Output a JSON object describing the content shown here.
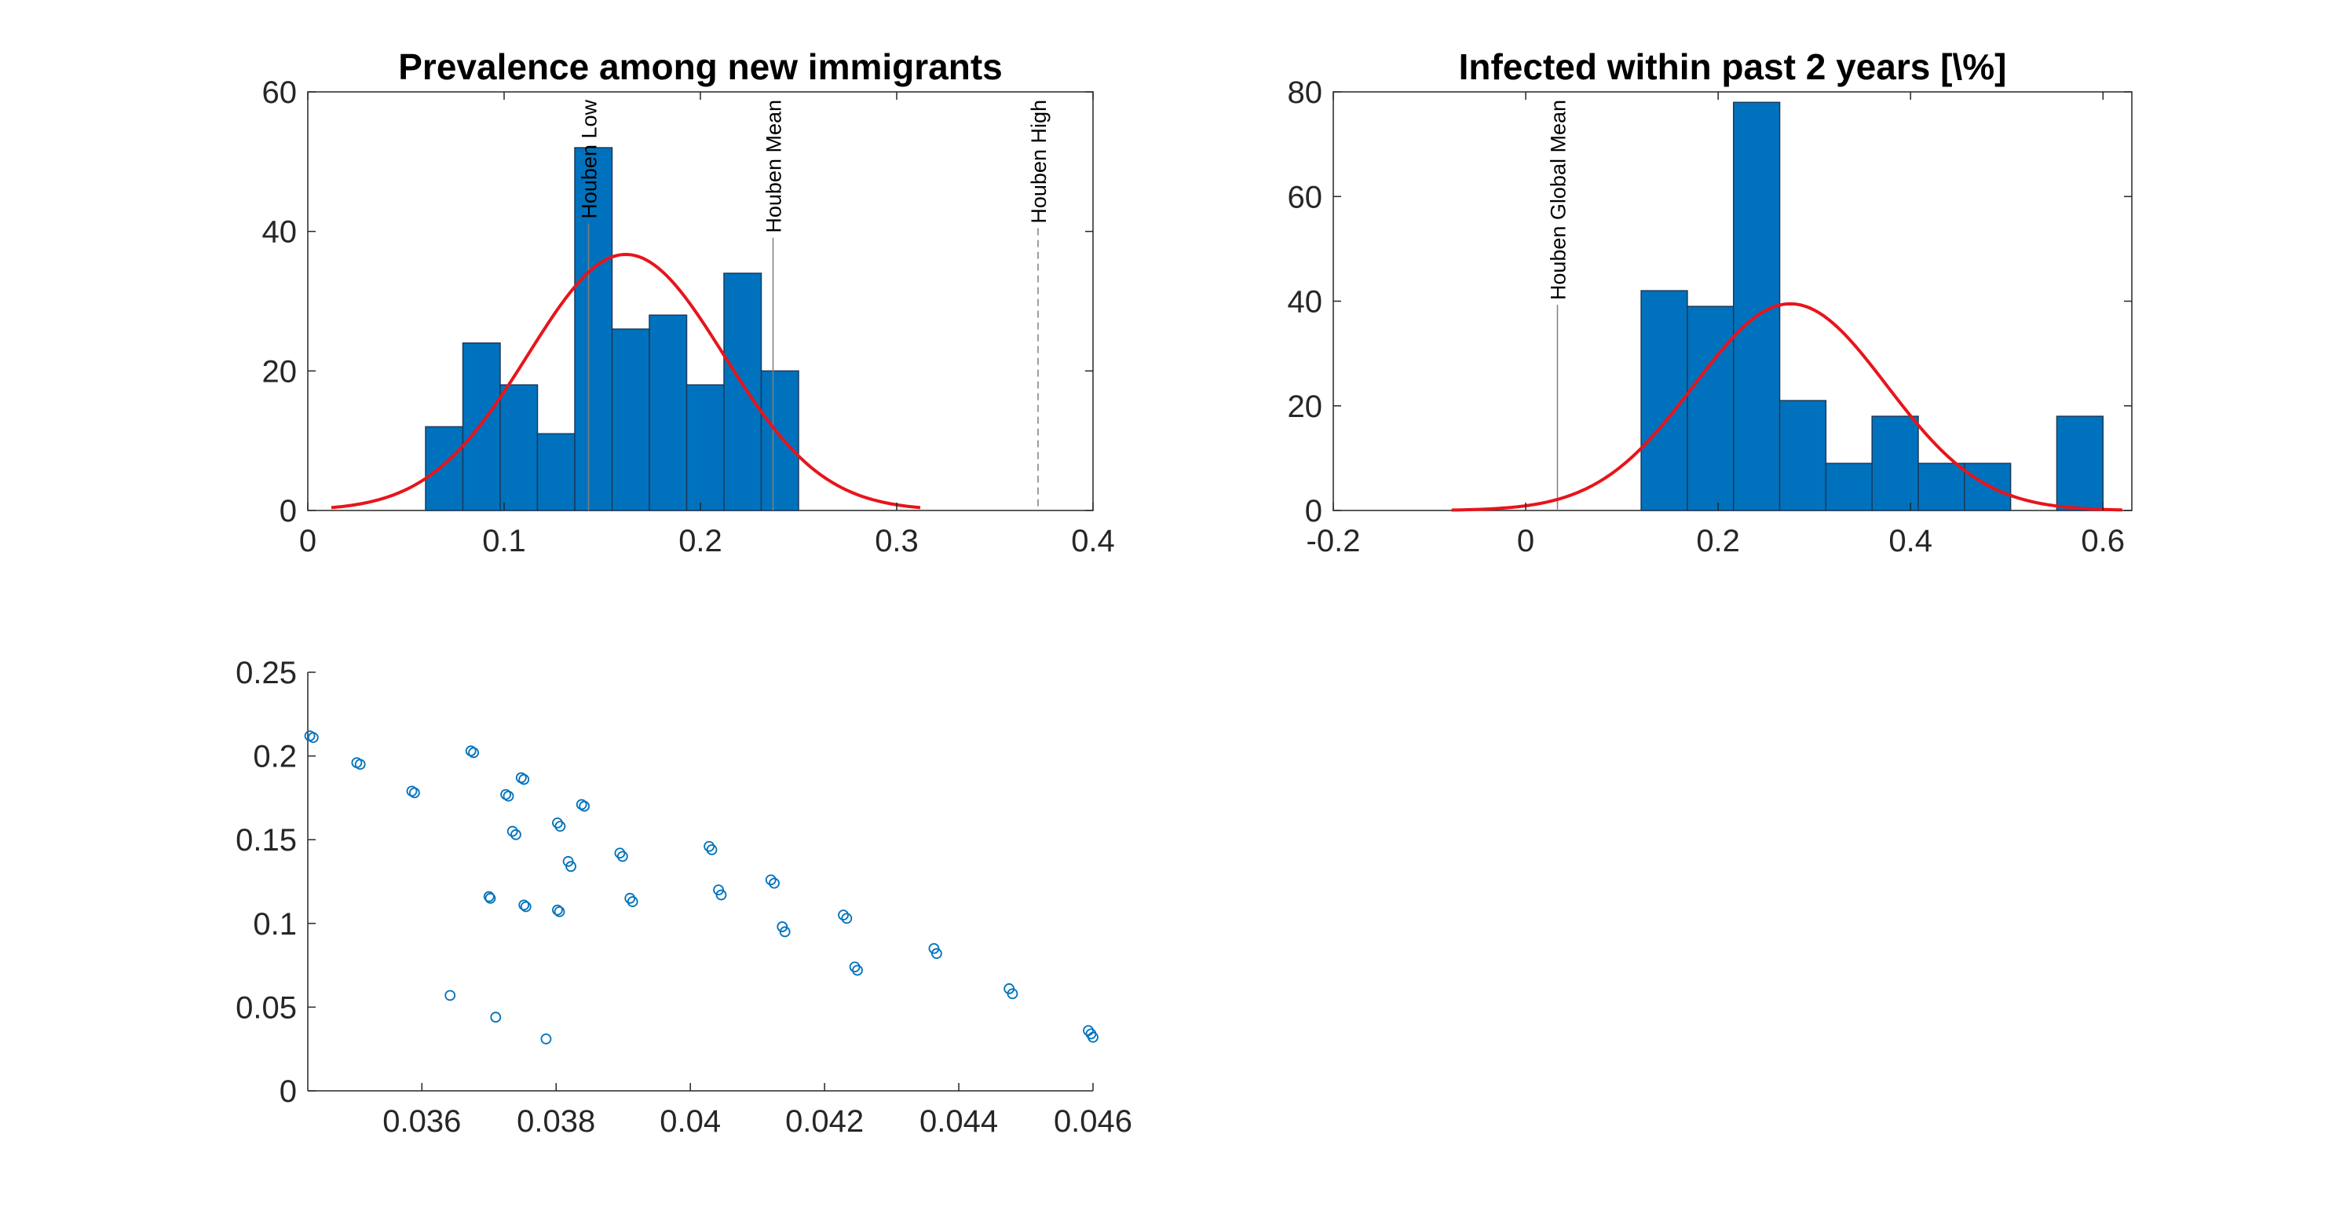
{
  "chart_data": [
    {
      "type": "bar",
      "title": "Prevalence among new immigrants",
      "xlabel": "",
      "ylabel": "",
      "xlim": [
        0,
        0.4
      ],
      "ylim": [
        0,
        60
      ],
      "xticks": [
        0,
        0.1,
        0.2,
        0.3,
        0.4
      ],
      "yticks": [
        0,
        20,
        40,
        60
      ],
      "xtick_labels": [
        "0",
        "0.1",
        "0.2",
        "0.3",
        "0.4"
      ],
      "ytick_labels": [
        "0",
        "20",
        "40",
        "60"
      ],
      "bins": [
        {
          "x0": 0.06,
          "x1": 0.079,
          "count": 12
        },
        {
          "x0": 0.079,
          "x1": 0.098,
          "count": 24
        },
        {
          "x0": 0.098,
          "x1": 0.117,
          "count": 18
        },
        {
          "x0": 0.117,
          "x1": 0.136,
          "count": 11
        },
        {
          "x0": 0.136,
          "x1": 0.155,
          "count": 52
        },
        {
          "x0": 0.155,
          "x1": 0.174,
          "count": 26
        },
        {
          "x0": 0.174,
          "x1": 0.193,
          "count": 28
        },
        {
          "x0": 0.193,
          "x1": 0.212,
          "count": 18
        },
        {
          "x0": 0.212,
          "x1": 0.231,
          "count": 34
        },
        {
          "x0": 0.231,
          "x1": 0.25,
          "count": 20
        }
      ],
      "fit_curve": {
        "type": "normal",
        "mean": 0.162,
        "sd": 0.05,
        "peak": 36.7,
        "x_range": [
          0.012,
          0.312
        ]
      },
      "reference_lines": [
        {
          "label": "Houben Low",
          "x": 0.143,
          "style": "solid"
        },
        {
          "label": "Houben Mean",
          "x": 0.237,
          "style": "solid"
        },
        {
          "label": "Houben High",
          "x": 0.372,
          "style": "dashed"
        }
      ],
      "colors": {
        "bar": "#0072BD",
        "bar_edge": "#1a3a5c",
        "curve": "#E8141B",
        "ref_line": "#7f7f7f"
      },
      "grid": false,
      "legend": "none"
    },
    {
      "type": "bar",
      "title": "Infected within past 2 years [\\%]",
      "xlabel": "",
      "ylabel": "",
      "xlim": [
        -0.2,
        0.63
      ],
      "ylim": [
        0,
        80
      ],
      "xticks": [
        -0.2,
        0,
        0.2,
        0.4,
        0.6
      ],
      "yticks": [
        0,
        20,
        40,
        60,
        80
      ],
      "xtick_labels": [
        "-0.2",
        "0",
        "0.2",
        "0.4",
        "0.6"
      ],
      "ytick_labels": [
        "0",
        "20",
        "40",
        "60",
        "80"
      ],
      "bins": [
        {
          "x0": 0.12,
          "x1": 0.168,
          "count": 42
        },
        {
          "x0": 0.168,
          "x1": 0.216,
          "count": 39
        },
        {
          "x0": 0.216,
          "x1": 0.264,
          "count": 78
        },
        {
          "x0": 0.264,
          "x1": 0.312,
          "count": 21
        },
        {
          "x0": 0.312,
          "x1": 0.36,
          "count": 9
        },
        {
          "x0": 0.36,
          "x1": 0.408,
          "count": 18
        },
        {
          "x0": 0.408,
          "x1": 0.456,
          "count": 9
        },
        {
          "x0": 0.456,
          "x1": 0.504,
          "count": 9
        },
        {
          "x0": 0.552,
          "x1": 0.6,
          "count": 18
        }
      ],
      "fit_curve": {
        "type": "normal",
        "mean": 0.275,
        "sd": 0.1,
        "peak": 39.5,
        "x_range": [
          -0.077,
          0.62
        ]
      },
      "reference_lines": [
        {
          "label": "Houben Global Mean",
          "x": 0.033,
          "style": "solid"
        }
      ],
      "colors": {
        "bar": "#0072BD",
        "bar_edge": "#1a3a5c",
        "curve": "#E8141B",
        "ref_line": "#7f7f7f"
      },
      "grid": false,
      "legend": "none"
    },
    {
      "type": "scatter",
      "title": "",
      "xlabel": "",
      "ylabel": "",
      "xlim": [
        0.0343,
        0.046
      ],
      "ylim": [
        0,
        0.25
      ],
      "xticks": [
        0.036,
        0.038,
        0.04,
        0.042,
        0.044,
        0.046
      ],
      "yticks": [
        0,
        0.05,
        0.1,
        0.15,
        0.2,
        0.25
      ],
      "xtick_labels": [
        "0.036",
        "0.038",
        "0.04",
        "0.042",
        "0.044",
        "0.046"
      ],
      "ytick_labels": [
        "0",
        "0.05",
        "0.1",
        "0.15",
        "0.2",
        "0.25"
      ],
      "marker": "circle-open",
      "colors": {
        "marker": "#0072BD"
      },
      "points": [
        [
          0.03433,
          0.212
        ],
        [
          0.03438,
          0.211
        ],
        [
          0.03503,
          0.196
        ],
        [
          0.03508,
          0.195
        ],
        [
          0.03585,
          0.179
        ],
        [
          0.03589,
          0.178
        ],
        [
          0.03673,
          0.203
        ],
        [
          0.03677,
          0.202
        ],
        [
          0.03725,
          0.177
        ],
        [
          0.03729,
          0.176
        ],
        [
          0.03748,
          0.187
        ],
        [
          0.03752,
          0.186
        ],
        [
          0.03838,
          0.171
        ],
        [
          0.03842,
          0.17
        ],
        [
          0.03735,
          0.155
        ],
        [
          0.0374,
          0.153
        ],
        [
          0.03802,
          0.16
        ],
        [
          0.03806,
          0.158
        ],
        [
          0.03818,
          0.137
        ],
        [
          0.03822,
          0.134
        ],
        [
          0.03895,
          0.142
        ],
        [
          0.03899,
          0.14
        ],
        [
          0.04028,
          0.146
        ],
        [
          0.04032,
          0.144
        ],
        [
          0.0412,
          0.126
        ],
        [
          0.04125,
          0.124
        ],
        [
          0.04228,
          0.105
        ],
        [
          0.04233,
          0.103
        ],
        [
          0.037,
          0.116
        ],
        [
          0.03702,
          0.115
        ],
        [
          0.03752,
          0.111
        ],
        [
          0.03755,
          0.11
        ],
        [
          0.03802,
          0.108
        ],
        [
          0.03805,
          0.107
        ],
        [
          0.0391,
          0.115
        ],
        [
          0.03914,
          0.113
        ],
        [
          0.04042,
          0.12
        ],
        [
          0.04046,
          0.117
        ],
        [
          0.04137,
          0.098
        ],
        [
          0.04141,
          0.095
        ],
        [
          0.04245,
          0.074
        ],
        [
          0.04249,
          0.072
        ],
        [
          0.04363,
          0.085
        ],
        [
          0.04367,
          0.082
        ],
        [
          0.04475,
          0.061
        ],
        [
          0.0448,
          0.058
        ],
        [
          0.04593,
          0.036
        ],
        [
          0.04597,
          0.034
        ],
        [
          0.046,
          0.032
        ],
        [
          0.03642,
          0.057
        ],
        [
          0.0371,
          0.044
        ],
        [
          0.03785,
          0.031
        ]
      ],
      "grid": false,
      "legend": "none"
    }
  ]
}
